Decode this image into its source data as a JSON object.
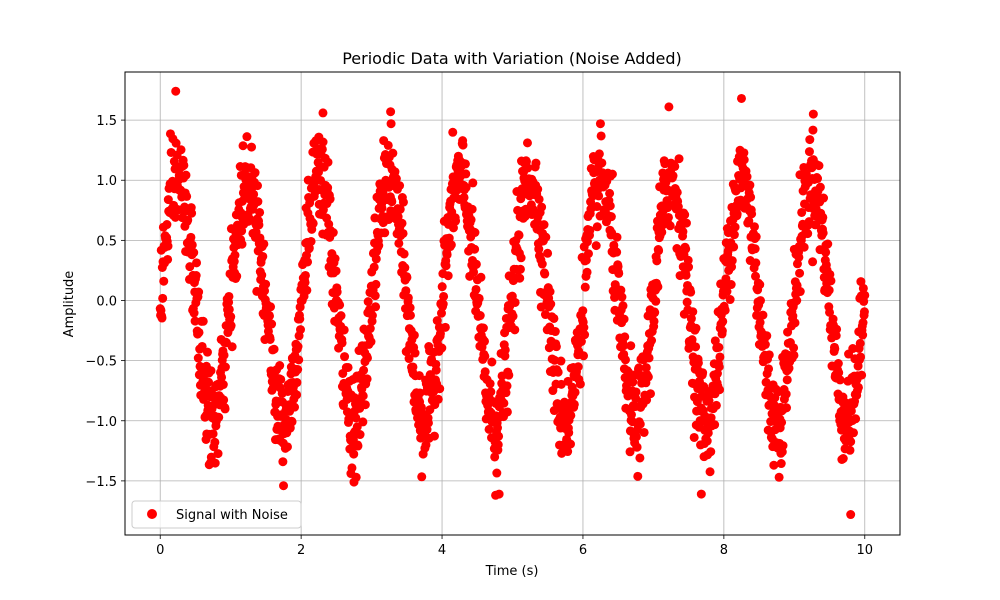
{
  "chart_data": {
    "type": "scatter",
    "title": "Periodic Data with Variation (Noise Added)",
    "xlabel": "Time (s)",
    "ylabel": "Amplitude",
    "xlim": [
      -0.5,
      10.5
    ],
    "ylim": [
      -1.95,
      1.9
    ],
    "xticks": [
      0,
      2,
      4,
      6,
      8,
      10
    ],
    "xtick_labels": [
      "0",
      "2",
      "4",
      "6",
      "8",
      "10"
    ],
    "yticks": [
      -1.5,
      -1.0,
      -0.5,
      0.0,
      0.5,
      1.0,
      1.5
    ],
    "ytick_labels": [
      "−1.5",
      "−1.0",
      "−0.5",
      "0.0",
      "0.5",
      "1.0",
      "1.5"
    ],
    "grid": true,
    "legend_position": "lower-left",
    "series": [
      {
        "name": "Signal with Noise",
        "color": "#ff0000",
        "marker": "circle",
        "signal": {
          "amplitude": 1.0,
          "frequency_hz": 1.0,
          "noise_std": 0.2,
          "x_start": 0,
          "x_end": 10,
          "count": 2000
        },
        "outliers": [
          [
            0.22,
            1.74
          ],
          [
            2.31,
            1.56
          ],
          [
            3.27,
            1.57
          ],
          [
            7.22,
            1.61
          ],
          [
            8.25,
            1.68
          ],
          [
            9.27,
            1.55
          ],
          [
            1.75,
            -1.54
          ],
          [
            2.75,
            -1.51
          ],
          [
            4.76,
            -1.62
          ],
          [
            4.81,
            -1.61
          ],
          [
            7.68,
            -1.61
          ],
          [
            9.8,
            -1.78
          ]
        ]
      }
    ]
  }
}
